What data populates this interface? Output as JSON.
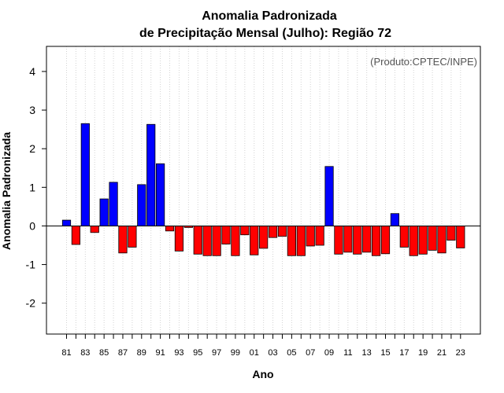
{
  "chart_data": {
    "type": "bar",
    "title_line1": "Anomalia Padronizada",
    "title_line2": "de Precipitação Mensal (Julho): Região 72",
    "xlabel": "Ano",
    "ylabel": "Anomalia Padronizada",
    "credit": "(Produto:CPTEC/INPE)",
    "ylim": [
      -2.8,
      4.65
    ],
    "yticks": [
      -2,
      -1,
      0,
      1,
      2,
      3,
      4
    ],
    "grid": "vertical-dotted",
    "positive_color": "#0000ff",
    "negative_color": "#ff0000",
    "categories": [
      "81",
      "82",
      "83",
      "84",
      "85",
      "86",
      "87",
      "88",
      "89",
      "90",
      "91",
      "92",
      "93",
      "94",
      "95",
      "96",
      "97",
      "98",
      "99",
      "00",
      "01",
      "02",
      "03",
      "04",
      "05",
      "06",
      "07",
      "08",
      "09",
      "10",
      "11",
      "12",
      "13",
      "14",
      "15",
      "16",
      "17",
      "18",
      "19",
      "20",
      "21",
      "22",
      "23"
    ],
    "tick_labels": [
      "81",
      "83",
      "85",
      "87",
      "89",
      "91",
      "93",
      "95",
      "97",
      "99",
      "01",
      "03",
      "05",
      "07",
      "09",
      "11",
      "13",
      "15",
      "17",
      "19",
      "21",
      "23"
    ],
    "values": [
      0.15,
      -0.48,
      2.65,
      -0.17,
      0.7,
      1.13,
      -0.7,
      -0.55,
      1.07,
      2.63,
      1.61,
      -0.13,
      -0.65,
      -0.04,
      -0.73,
      -0.77,
      -0.77,
      -0.47,
      -0.77,
      -0.23,
      -0.75,
      -0.58,
      -0.3,
      -0.27,
      -0.77,
      -0.77,
      -0.52,
      -0.5,
      1.54,
      -0.73,
      -0.68,
      -0.73,
      -0.68,
      -0.77,
      -0.72,
      0.32,
      -0.55,
      -0.77,
      -0.73,
      -0.63,
      -0.7,
      -0.37,
      -0.57
    ]
  }
}
